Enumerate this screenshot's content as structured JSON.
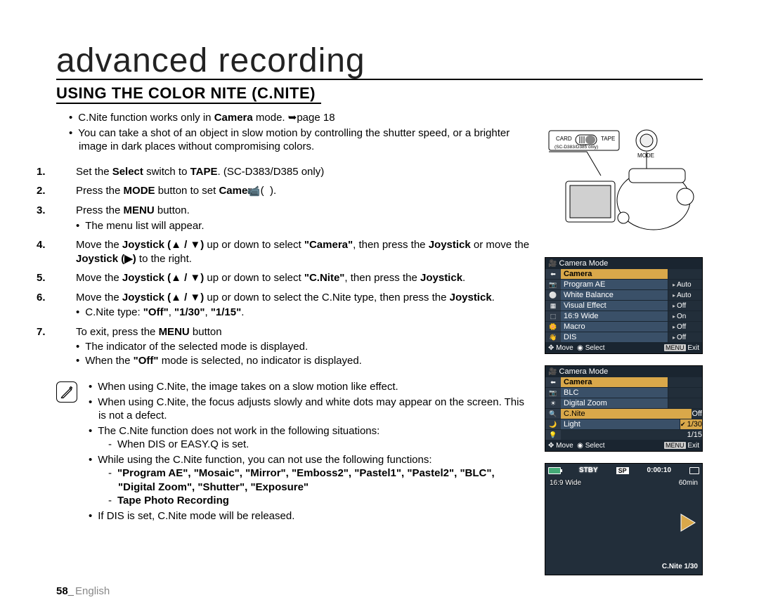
{
  "chapter_title": "advanced recording",
  "section_title": "USING THE COLOR NITE (C.NITE)",
  "intro_bullets": [
    {
      "pre": "C.Nite function works only in ",
      "b": "Camera",
      "post": " mode. ➥page 18"
    },
    {
      "text": "You can take a shot of an object in slow motion by controlling the shutter speed, or a brighter image in dark places without compromising colors."
    }
  ],
  "steps": [
    {
      "parts": [
        {
          "t": "Set the "
        },
        {
          "b": "Select"
        },
        {
          "t": " switch to "
        },
        {
          "b": "TAPE"
        },
        {
          "t": ". (SC-D383/D385 only)"
        }
      ]
    },
    {
      "parts": [
        {
          "t": "Press the "
        },
        {
          "b": "MODE"
        },
        {
          "t": " button to set "
        },
        {
          "b": "Camera"
        },
        {
          "t": " ( "
        },
        {
          "icon": "camera"
        },
        {
          "t": " )."
        }
      ]
    },
    {
      "parts": [
        {
          "t": "Press the "
        },
        {
          "b": "MENU"
        },
        {
          "t": " button."
        }
      ],
      "subs": [
        {
          "t": "The menu list will appear."
        }
      ]
    },
    {
      "parts": [
        {
          "t": "Move the "
        },
        {
          "b": "Joystick (▲ / ▼)"
        },
        {
          "t": " up or down to select "
        },
        {
          "b": "\"Camera\""
        },
        {
          "t": ", then press the "
        },
        {
          "b": "Joystick"
        },
        {
          "t": " or move the "
        },
        {
          "b": "Joystick (▶)"
        },
        {
          "t": " to the right."
        }
      ]
    },
    {
      "parts": [
        {
          "t": "Move the "
        },
        {
          "b": "Joystick (▲ / ▼)"
        },
        {
          "t": " up or down to select "
        },
        {
          "b": "\"C.Nite\""
        },
        {
          "t": ", then press the "
        },
        {
          "b": "Joystick"
        },
        {
          "t": "."
        }
      ]
    },
    {
      "parts": [
        {
          "t": "Move the "
        },
        {
          "b": "Joystick (▲ / ▼)"
        },
        {
          "t": " up or down to select the C.Nite type, then press the "
        },
        {
          "b": "Joystick"
        },
        {
          "t": "."
        }
      ],
      "subs": [
        {
          "pre": "C.Nite type: ",
          "b": "\"Off\"",
          "post": ", ",
          "b2": "\"1/30\"",
          "post2": ", ",
          "b3": "\"1/15\"",
          "post3": "."
        }
      ]
    },
    {
      "parts": [
        {
          "t": "To exit, press the "
        },
        {
          "b": "MENU"
        },
        {
          "t": " button"
        }
      ],
      "subs": [
        {
          "t": "The indicator of the selected mode is displayed."
        },
        {
          "pre": "When the ",
          "b": "\"Off\"",
          "post": " mode is selected, no indicator is displayed."
        }
      ]
    }
  ],
  "notes": [
    {
      "t": "When using C.Nite, the image takes on a slow motion like effect."
    },
    {
      "t": "When using C.Nite, the focus adjusts slowly and white dots may appear on the screen. This is not a defect."
    },
    {
      "t": "The C.Nite function does not work in the following situations:",
      "dashes": [
        {
          "t": "When DIS or EASY.Q is set."
        }
      ]
    },
    {
      "t": "While using the C.Nite function, you can not use the following functions:",
      "dashes": [
        {
          "b": "\"Program AE\", \"Mosaic\", \"Mirror\", \"Emboss2\", \"Pastel1\", \"Pastel2\", \"BLC\", \"Digital Zoom\",  \"Shutter\", \"Exposure\""
        },
        {
          "b": "Tape Photo Recording"
        }
      ]
    },
    {
      "t": "If DIS is set, C.Nite mode will be released."
    }
  ],
  "footer_page": "58_",
  "footer_lang": "English",
  "illust_labels": {
    "card": "CARD",
    "tape": "TAPE",
    "mode": "MODE",
    "note": "(SC-D383/D385 only)"
  },
  "menu1": {
    "title": "Camera Mode",
    "highlight": "Camera",
    "rows": [
      {
        "lbl": "Program AE",
        "val": "Auto"
      },
      {
        "lbl": "White Balance",
        "val": "Auto"
      },
      {
        "lbl": "Visual Effect",
        "val": "Off"
      },
      {
        "lbl": "16:9 Wide",
        "val": "On"
      },
      {
        "lbl": "Macro",
        "val": "Off"
      },
      {
        "lbl": "DIS",
        "val": "Off"
      }
    ],
    "foot_move": "Move",
    "foot_select": "Select",
    "foot_menu": "MENU",
    "foot_exit": "Exit"
  },
  "menu2": {
    "title": "Camera Mode",
    "highlight": "Camera",
    "rows": [
      {
        "lbl": "BLC"
      },
      {
        "lbl": "Digital Zoom"
      },
      {
        "lbl": "C.Nite",
        "opts": [
          "Off",
          "1/30",
          "1/15"
        ],
        "sel": "1/30"
      },
      {
        "lbl": "Light"
      }
    ],
    "foot_move": "Move",
    "foot_select": "Select",
    "foot_menu": "MENU",
    "foot_exit": "Exit"
  },
  "rec": {
    "stby": "STBY",
    "sp": "SP",
    "time": "0:00:10",
    "wide": "16:9 Wide",
    "min": "60min",
    "cnite": "C.Nite 1/30"
  }
}
